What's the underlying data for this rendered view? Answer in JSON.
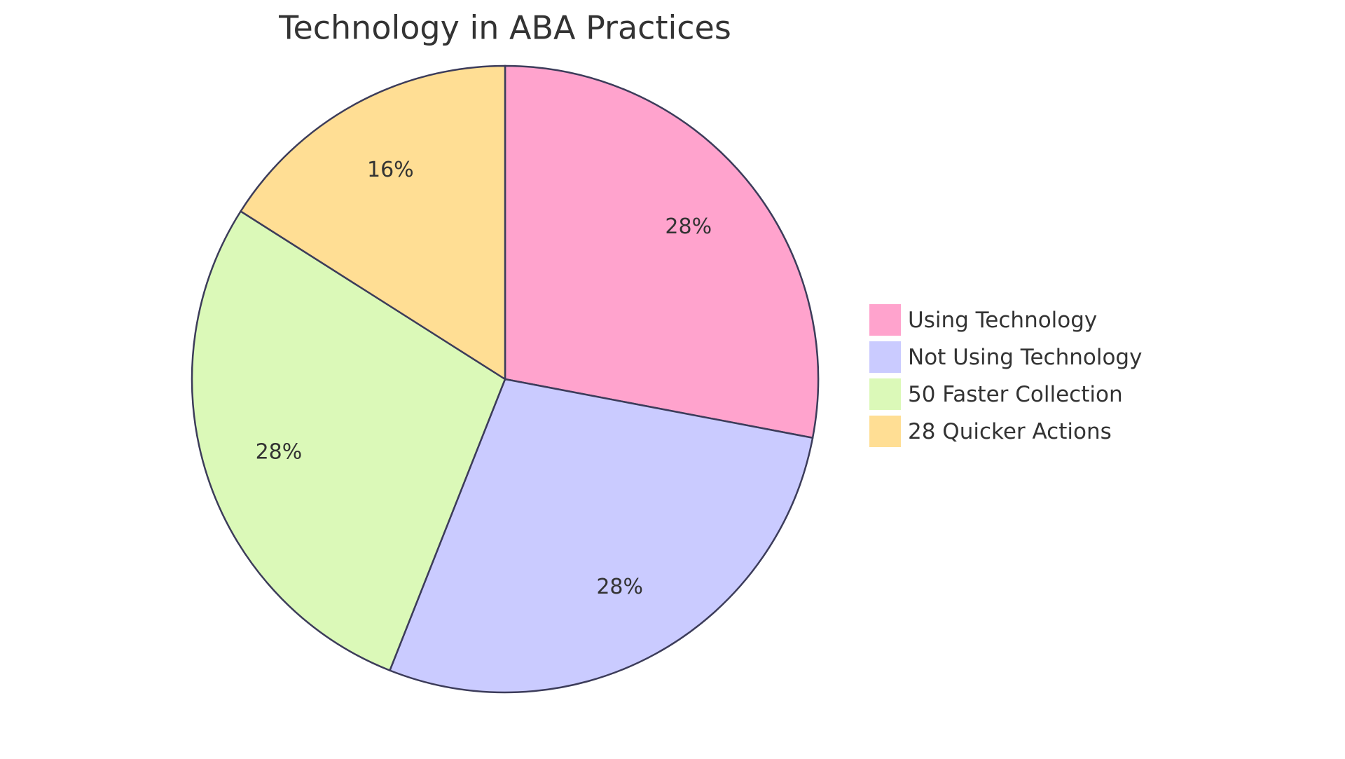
{
  "chart_data": {
    "type": "pie",
    "title": "Technology in ABA Practices",
    "categories": [
      "Using Technology",
      "Not Using Technology",
      "50 Faster Collection",
      "28 Quicker Actions"
    ],
    "values": [
      28,
      28,
      28,
      16
    ],
    "value_labels": [
      "28%",
      "28%",
      "28%",
      "16%"
    ],
    "colors": [
      "#FFA3CD",
      "#CACBFF",
      "#DBF9B8",
      "#FFDE94"
    ],
    "legend": "right"
  }
}
